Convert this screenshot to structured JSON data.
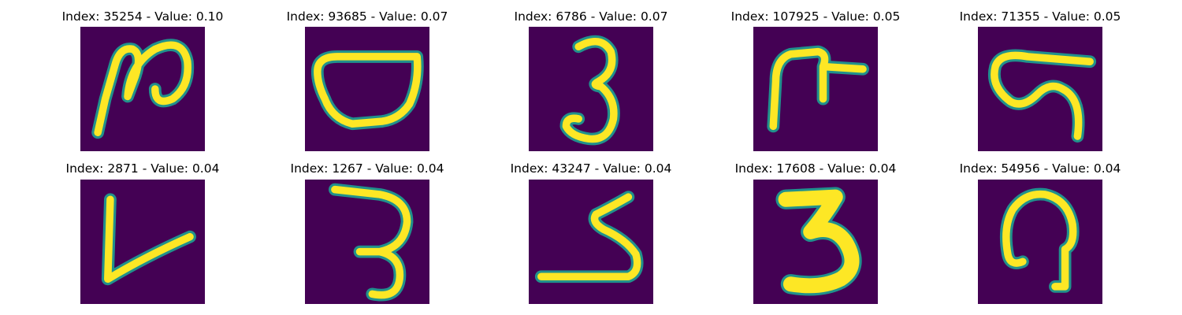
{
  "figure": {
    "colors": {
      "background": "#440154",
      "halo": "#21918c",
      "stroke": "#fde725",
      "title": "#000000"
    },
    "tiles": [
      {
        "title": "Index: 35254 - Value: 0.10"
      },
      {
        "title": "Index: 93685 - Value: 0.07"
      },
      {
        "title": "Index: 6786 - Value: 0.07"
      },
      {
        "title": "Index: 107925 - Value: 0.05"
      },
      {
        "title": "Index: 71355 - Value: 0.05"
      },
      {
        "title": "Index: 2871 - Value: 0.04"
      },
      {
        "title": "Index: 1267 - Value: 0.04"
      },
      {
        "title": "Index: 43247 - Value: 0.04"
      },
      {
        "title": "Index: 17608 - Value: 0.04"
      },
      {
        "title": "Index: 54956 - Value: 0.04"
      }
    ]
  }
}
